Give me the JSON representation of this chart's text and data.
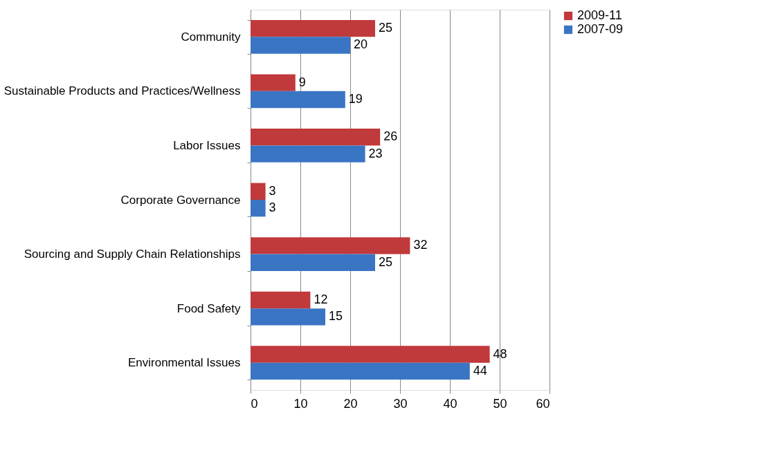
{
  "chart_data": {
    "type": "bar",
    "orientation": "horizontal",
    "categories": [
      "Community",
      "Sustainable Products and Practices/Wellness",
      "Labor Issues",
      "Corporate Governance",
      "Sourcing and Supply Chain Relationships",
      "Food Safety",
      "Environmental Issues"
    ],
    "series": [
      {
        "name": "2009-11",
        "color": "#c0393b",
        "values": [
          25,
          9,
          26,
          3,
          32,
          12,
          48
        ]
      },
      {
        "name": "2007-09",
        "color": "#3a75c4",
        "values": [
          20,
          19,
          23,
          3,
          25,
          15,
          44
        ]
      }
    ],
    "xlim": [
      0,
      60
    ],
    "xticks": [
      0,
      10,
      20,
      30,
      40,
      50,
      60
    ],
    "grid": "x",
    "legend": "right",
    "data_labels": true
  }
}
